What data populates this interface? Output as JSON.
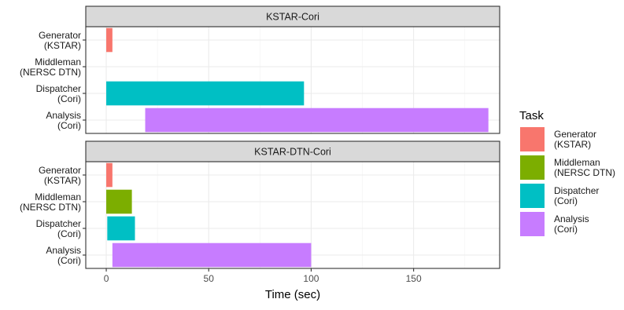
{
  "chart_data": {
    "type": "gantt",
    "xlabel": "Time (sec)",
    "xlim": [
      -10,
      192
    ],
    "x_ticks": [
      0,
      50,
      100,
      150
    ],
    "categories": [
      [
        "Generator",
        "(KSTAR)"
      ],
      [
        "Middleman",
        "(NERSC DTN)"
      ],
      [
        "Dispatcher",
        "(Cori)"
      ],
      [
        "Analysis",
        "(Cori)"
      ]
    ],
    "legend": {
      "title": "Task",
      "placement": "right",
      "items": [
        {
          "label": [
            "Generator",
            "(KSTAR)"
          ],
          "color": "#F8766D"
        },
        {
          "label": [
            "Middleman",
            "(NERSC DTN)"
          ],
          "color": "#7CAE00"
        },
        {
          "label": [
            "Dispatcher",
            "(Cori)"
          ],
          "color": "#00BFC4"
        },
        {
          "label": [
            "Analysis",
            "(Cori)"
          ],
          "color": "#C77CFF"
        }
      ]
    },
    "panels": [
      {
        "title": "KSTAR-Cori",
        "bars": [
          {
            "task": 0,
            "start": 0,
            "end": 3
          },
          {
            "task": 2,
            "start": 0,
            "end": 96.5
          },
          {
            "task": 3,
            "start": 19,
            "end": 186.5
          }
        ]
      },
      {
        "title": "KSTAR-DTN-Cori",
        "bars": [
          {
            "task": 0,
            "start": 0,
            "end": 3
          },
          {
            "task": 1,
            "start": 0,
            "end": 12.5
          },
          {
            "task": 2,
            "start": 0.5,
            "end": 14
          },
          {
            "task": 3,
            "start": 3,
            "end": 100
          }
        ]
      }
    ],
    "grid": true
  }
}
